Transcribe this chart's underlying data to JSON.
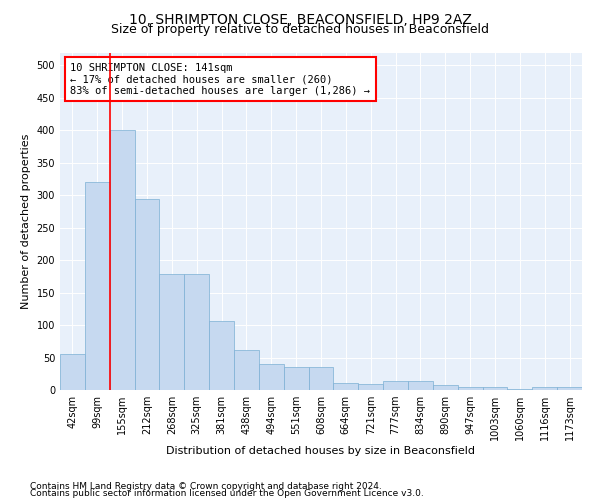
{
  "title": "10, SHRIMPTON CLOSE, BEACONSFIELD, HP9 2AZ",
  "subtitle": "Size of property relative to detached houses in Beaconsfield",
  "xlabel": "Distribution of detached houses by size in Beaconsfield",
  "ylabel": "Number of detached properties",
  "categories": [
    "42sqm",
    "99sqm",
    "155sqm",
    "212sqm",
    "268sqm",
    "325sqm",
    "381sqm",
    "438sqm",
    "494sqm",
    "551sqm",
    "608sqm",
    "664sqm",
    "721sqm",
    "777sqm",
    "834sqm",
    "890sqm",
    "947sqm",
    "1003sqm",
    "1060sqm",
    "1116sqm",
    "1173sqm"
  ],
  "values": [
    55,
    320,
    400,
    295,
    178,
    178,
    107,
    62,
    40,
    36,
    35,
    11,
    10,
    14,
    14,
    8,
    5,
    4,
    1,
    4,
    5
  ],
  "bar_color": "#c6d9f0",
  "bar_edge_color": "#7bafd4",
  "vline_color": "red",
  "vline_x_index": 2,
  "annotation_text": "10 SHRIMPTON CLOSE: 141sqm\n← 17% of detached houses are smaller (260)\n83% of semi-detached houses are larger (1,286) →",
  "annotation_box_color": "white",
  "annotation_box_edge": "red",
  "ylim": [
    0,
    520
  ],
  "yticks": [
    0,
    50,
    100,
    150,
    200,
    250,
    300,
    350,
    400,
    450,
    500
  ],
  "footnote1": "Contains HM Land Registry data © Crown copyright and database right 2024.",
  "footnote2": "Contains public sector information licensed under the Open Government Licence v3.0.",
  "plot_background": "#e8f0fa",
  "title_fontsize": 10,
  "subtitle_fontsize": 9,
  "axis_label_fontsize": 8,
  "tick_fontsize": 7,
  "annotation_fontsize": 7.5,
  "footnote_fontsize": 6.5
}
